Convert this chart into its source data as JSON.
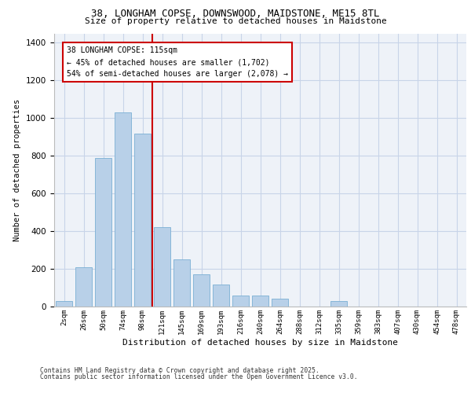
{
  "title_line1": "38, LONGHAM COPSE, DOWNSWOOD, MAIDSTONE, ME15 8TL",
  "title_line2": "Size of property relative to detached houses in Maidstone",
  "xlabel": "Distribution of detached houses by size in Maidstone",
  "ylabel": "Number of detached properties",
  "categories": [
    "2sqm",
    "26sqm",
    "50sqm",
    "74sqm",
    "98sqm",
    "121sqm",
    "145sqm",
    "169sqm",
    "193sqm",
    "216sqm",
    "240sqm",
    "264sqm",
    "288sqm",
    "312sqm",
    "335sqm",
    "359sqm",
    "383sqm",
    "407sqm",
    "430sqm",
    "454sqm",
    "478sqm"
  ],
  "values": [
    30,
    210,
    790,
    1030,
    920,
    420,
    250,
    170,
    115,
    60,
    60,
    40,
    0,
    0,
    30,
    0,
    0,
    0,
    0,
    0,
    0
  ],
  "bar_color": "#b8d0e8",
  "bar_edge_color": "#7aafd4",
  "grid_color": "#c8d4e8",
  "bg_color": "#eef2f8",
  "vline_color": "#cc0000",
  "vline_x": 4.5,
  "annotation_text": "38 LONGHAM COPSE: 115sqm\n← 45% of detached houses are smaller (1,702)\n54% of semi-detached houses are larger (2,078) →",
  "annotation_box_edgecolor": "#cc0000",
  "ylim": [
    0,
    1450
  ],
  "yticks": [
    0,
    200,
    400,
    600,
    800,
    1000,
    1200,
    1400
  ],
  "footer_line1": "Contains HM Land Registry data © Crown copyright and database right 2025.",
  "footer_line2": "Contains public sector information licensed under the Open Government Licence v3.0."
}
